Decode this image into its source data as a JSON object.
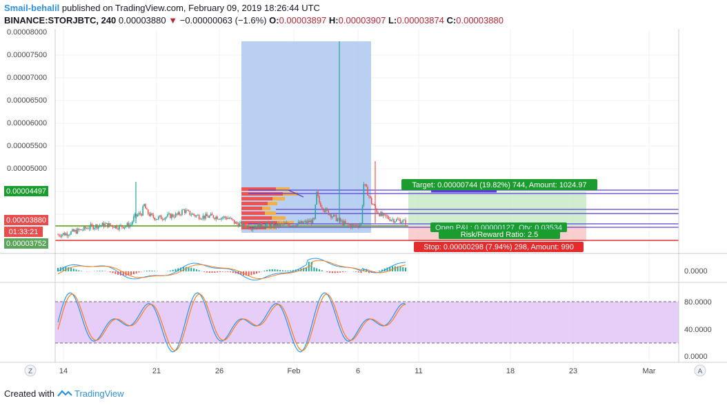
{
  "header": {
    "author": "Smail-behalil",
    "published_text": "published on TradingView.com, February 09, 2019 18:26:44 UTC",
    "symbol": "BINANCE:STORJBTC, 240",
    "last_price": "0.00003880",
    "down_arrow": "▼",
    "change": "−0.00000063 (−1.6%)",
    "o_label": "O:",
    "o_value": "0.00003897",
    "h_label": "H:",
    "h_value": "0.00003907",
    "l_label": "L:",
    "l_value": "0.00003874",
    "c_label": "C:",
    "c_value": "0.00003880"
  },
  "price_axis": {
    "ticks": [
      "0.00008000",
      "0.00007500",
      "0.00007000",
      "0.00006500",
      "0.00006000",
      "0.00005500",
      "0.00005000",
      "0.00003880",
      "0.00003752"
    ],
    "tags": [
      {
        "text": "0.00004497",
        "color": "#1a9c2e"
      },
      {
        "text": "0.00003880",
        "color": "#e84c4c"
      },
      {
        "text": "01:33:21",
        "color": "#e84c4c"
      },
      {
        "text": "0.00003752",
        "color": "#5aa55a"
      }
    ]
  },
  "macd_axis": {
    "label": "0.0000"
  },
  "stoch_axis": {
    "labels": [
      "80.0000",
      "40.0000",
      "0.0000"
    ]
  },
  "time_axis": {
    "labels": [
      "14",
      "21",
      "26",
      "Feb",
      "6",
      "11",
      "18",
      "23",
      "Mar"
    ]
  },
  "position": {
    "target": "Target: 0.00000744 (19.82%) 744, Amount: 1024.97",
    "open": "Open P&L: 0.00000127, Qty: 0.03534",
    "ratio": "Risk/Reward Ratio: 2.5",
    "stop": "Stop: 0.00000298 (7.94%) 298, Amount: 990"
  },
  "buttons": {
    "zoom": "Z",
    "auto": "A"
  },
  "footer": {
    "created_with": "Created with",
    "brand": "TradingView"
  },
  "colors": {
    "up": "#26a69a",
    "down": "#ef5350",
    "target": "#1a9c2e",
    "stop": "#e52b2b",
    "volume_profile": "#aec8f0",
    "stoch_band": "#e3c6f7"
  },
  "chart_data": {
    "type": "candlestick",
    "symbol": "BINANCE:STORJBTC",
    "interval": "240",
    "ylim": [
      3.6e-05,
      8e-05
    ],
    "entry_price": 3.752e-05,
    "target_price": 4.497e-05,
    "stop_price": 3.454e-05,
    "ohlc_last": {
      "o": 3.897e-05,
      "h": 3.907e-05,
      "l": 3.874e-05,
      "c": 3.88e-05
    },
    "close_path": [
      [
        0,
        3.62e-05
      ],
      [
        6,
        3.64e-05
      ],
      [
        12,
        3.68e-05
      ],
      [
        18,
        3.72e-05
      ],
      [
        24,
        3.78e-05
      ],
      [
        30,
        3.81e-05
      ],
      [
        36,
        3.83e-05
      ],
      [
        40,
        3.82e-05
      ],
      [
        46,
        3.79e-05
      ],
      [
        52,
        3.81e-05
      ],
      [
        56,
        3.84e-05
      ],
      [
        58,
        3.98e-05
      ],
      [
        60,
        4.02e-05
      ],
      [
        64,
        4.08e-05
      ],
      [
        66,
        4.25e-05
      ],
      [
        68,
        4.1e-05
      ],
      [
        72,
        4e-05
      ],
      [
        76,
        3.97e-05
      ],
      [
        80,
        3.99e-05
      ],
      [
        86,
        4.02e-05
      ],
      [
        92,
        4.04e-05
      ],
      [
        96,
        4.14e-05
      ],
      [
        100,
        4.08e-05
      ],
      [
        106,
        4.02e-05
      ],
      [
        112,
        4e-05
      ],
      [
        118,
        4.01e-05
      ],
      [
        124,
        3.99e-05
      ],
      [
        130,
        3.98e-05
      ],
      [
        136,
        3.86e-05
      ],
      [
        142,
        3.82e-05
      ],
      [
        148,
        3.78e-05
      ],
      [
        154,
        3.81e-05
      ],
      [
        160,
        3.83e-05
      ],
      [
        166,
        3.8e-05
      ],
      [
        172,
        3.84e-05
      ],
      [
        178,
        3.83e-05
      ],
      [
        184,
        3.85e-05
      ],
      [
        190,
        3.88e-05
      ],
      [
        196,
        3.92e-05
      ],
      [
        198,
        4.5e-05
      ],
      [
        200,
        4.3e-05
      ],
      [
        204,
        4.15e-05
      ],
      [
        210,
        4.02e-05
      ],
      [
        216,
        3.9e-05
      ],
      [
        220,
        3.84e-05
      ],
      [
        226,
        3.8e-05
      ],
      [
        232,
        3.85e-05
      ],
      [
        234,
        4.7e-05
      ],
      [
        236,
        4.58e-05
      ],
      [
        240,
        4.3e-05
      ],
      [
        244,
        4.12e-05
      ],
      [
        248,
        4.02e-05
      ],
      [
        254,
        3.96e-05
      ],
      [
        258,
        3.93e-05
      ],
      [
        262,
        3.92e-05
      ],
      [
        266,
        3.88e-05
      ]
    ],
    "spikes": [
      [
        197,
        7.8e-05
      ],
      [
        234,
        5.2e-05
      ]
    ],
    "volume_profile_range": [
      3.6e-05,
      7.78e-05
    ],
    "stoch_levels": [
      80,
      20
    ]
  }
}
